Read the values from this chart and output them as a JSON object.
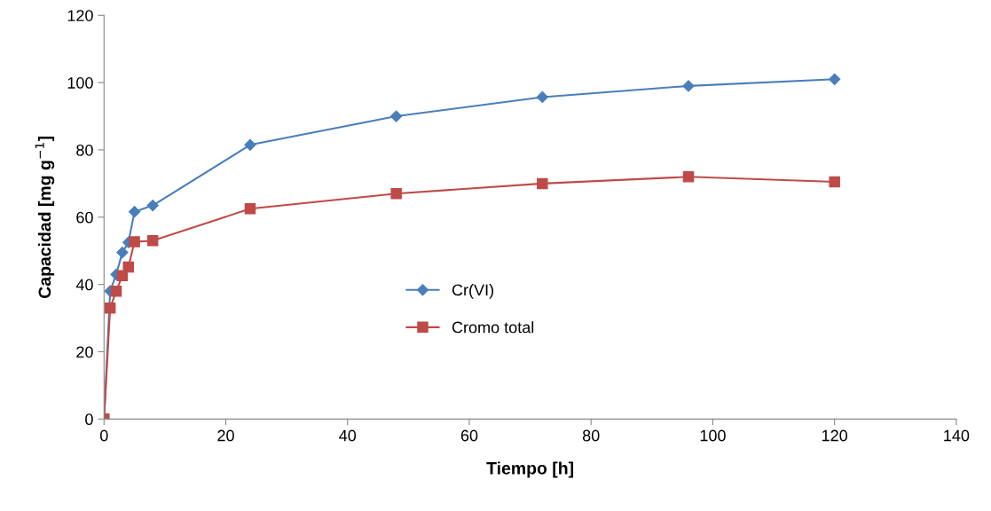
{
  "chart_data": {
    "type": "line",
    "xlabel": "Tiempo [h]",
    "ylabel": "Capacidad [mg g$^{−1}$]",
    "x": [
      0,
      1,
      2,
      3,
      4,
      5,
      8,
      24,
      48,
      72,
      96,
      120
    ],
    "series": [
      {
        "name": "Cr(VI)",
        "color": "#4a7ebb",
        "marker": "diamond",
        "values": [
          0,
          38,
          43,
          49.5,
          52.5,
          61.6,
          63.5,
          81.5,
          90,
          95.7,
          99,
          101
        ]
      },
      {
        "name": "Cromo total",
        "color": "#be4b48",
        "marker": "square",
        "values": [
          0,
          33,
          38,
          42.6,
          45.2,
          52.7,
          53,
          62.5,
          67,
          70,
          72,
          70.5
        ]
      }
    ],
    "xlim": [
      0,
      140
    ],
    "xticks": [
      0,
      20,
      40,
      60,
      80,
      100,
      120,
      140
    ],
    "ylim": [
      0,
      120
    ],
    "yticks": [
      0,
      20,
      40,
      60,
      80,
      100,
      120
    ],
    "grid": false,
    "legend": "center",
    "line_style": "solid"
  }
}
